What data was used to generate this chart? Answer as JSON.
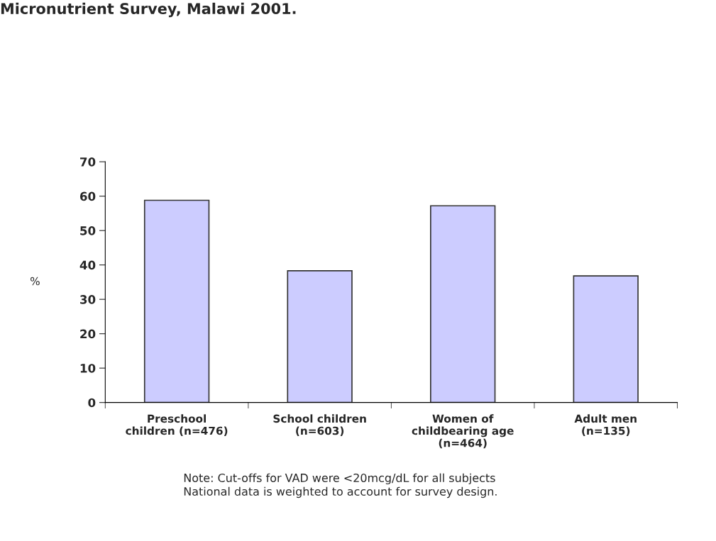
{
  "chart_data": {
    "type": "bar",
    "title": "Micronutrient Survey, Malawi 2001.",
    "ylabel": "%",
    "categories": [
      "Preschool\nchildren (n=476)",
      "School children\n(n=603)",
      "Women of\nchildbearing age\n(n=464)",
      "Adult men\n(n=135)"
    ],
    "values": [
      58.8,
      38.3,
      57.2,
      36.8
    ],
    "color": "#ccccff",
    "ylim": [
      0,
      70
    ],
    "yticks": [
      0,
      10,
      20,
      30,
      40,
      50,
      60,
      70
    ],
    "annotations": [
      "Note: Cut-offs for VAD were <20mcg/dL for all subjects\nNational data is weighted to account for survey design."
    ]
  }
}
